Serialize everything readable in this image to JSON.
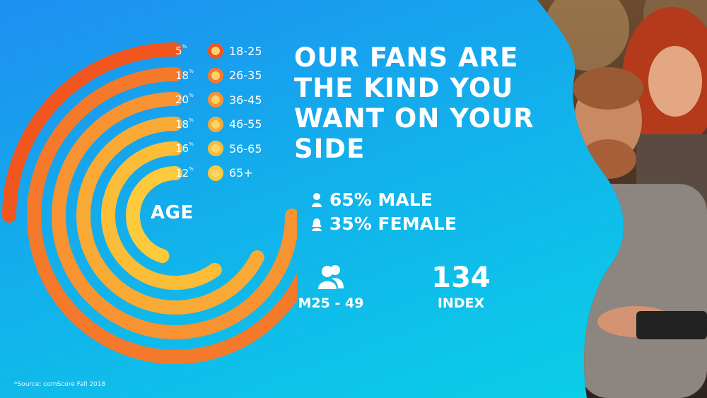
{
  "headline": "OUR FANS ARE THE KIND YOU WANT ON YOUR SIDE",
  "chart_data": {
    "type": "radial-bar",
    "title": "AGE",
    "unit": "%",
    "categories": [
      "18-25",
      "26-35",
      "36-45",
      "46-55",
      "56-65",
      "65+"
    ],
    "values": [
      5,
      18,
      20,
      18,
      16,
      12
    ],
    "colors": [
      "#f0561e",
      "#f5792a",
      "#f89332",
      "#f9aa35",
      "#fbbd37",
      "#fcca3b"
    ]
  },
  "gender": {
    "male": "65% MALE",
    "female": "35% FEMALE"
  },
  "demo": {
    "label": "M25 - 49"
  },
  "index": {
    "value": "134",
    "label": "INDEX"
  },
  "source": "*Source: comScore Fall 2018",
  "icons": {
    "male": "male-user-icon",
    "female": "female-user-icon",
    "demo": "people-icon"
  }
}
